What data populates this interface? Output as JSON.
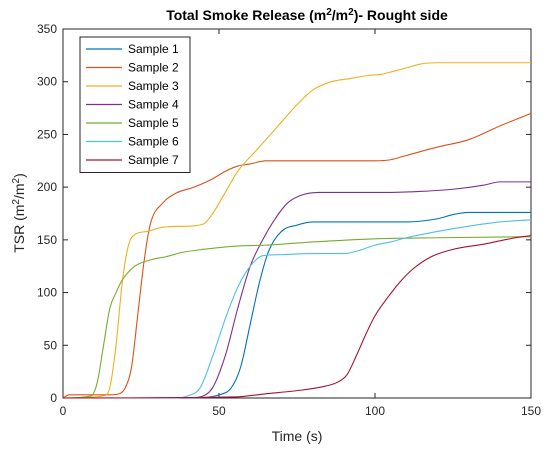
{
  "chart_data": {
    "type": "line",
    "title_prefix": "Total Smoke Release (m",
    "title_sup1": "2",
    "title_mid": "/m",
    "title_sup2": "2",
    "title_suffix": ")- Rought side",
    "xlabel": "Time (s)",
    "ylabel_prefix": "TSR (m",
    "ylabel_sup1": "2",
    "ylabel_mid": "/m",
    "ylabel_sup2": "2",
    "ylabel_suffix": ")",
    "xlim": [
      0,
      150
    ],
    "ylim": [
      0,
      350
    ],
    "xticks": [
      0,
      50,
      100,
      150
    ],
    "yticks": [
      0,
      50,
      100,
      150,
      200,
      250,
      300,
      350
    ],
    "grid": false,
    "legend_position": "top-left",
    "series": [
      {
        "name": "Sample 1",
        "color": "#0072BD",
        "points": [
          [
            0,
            0
          ],
          [
            40,
            0
          ],
          [
            50,
            3
          ],
          [
            54,
            10
          ],
          [
            57,
            30
          ],
          [
            60,
            70
          ],
          [
            63,
            110
          ],
          [
            66,
            140
          ],
          [
            70,
            158
          ],
          [
            75,
            164
          ],
          [
            80,
            167
          ],
          [
            90,
            167
          ],
          [
            110,
            167
          ],
          [
            120,
            170
          ],
          [
            125,
            174
          ],
          [
            130,
            176
          ],
          [
            150,
            176
          ]
        ]
      },
      {
        "name": "Sample 2",
        "color": "#D95319",
        "points": [
          [
            0,
            0
          ],
          [
            2,
            3
          ],
          [
            5,
            3
          ],
          [
            10,
            3
          ],
          [
            15,
            3
          ],
          [
            18,
            4
          ],
          [
            20,
            10
          ],
          [
            22,
            30
          ],
          [
            24,
            80
          ],
          [
            26,
            130
          ],
          [
            28,
            165
          ],
          [
            32,
            185
          ],
          [
            36,
            194
          ],
          [
            42,
            200
          ],
          [
            48,
            208
          ],
          [
            52,
            215
          ],
          [
            56,
            220
          ],
          [
            60,
            222
          ],
          [
            65,
            225
          ],
          [
            80,
            225
          ],
          [
            100,
            225
          ],
          [
            105,
            226
          ],
          [
            110,
            230
          ],
          [
            120,
            238
          ],
          [
            130,
            245
          ],
          [
            140,
            258
          ],
          [
            150,
            270
          ]
        ]
      },
      {
        "name": "Sample 3",
        "color": "#EDB120",
        "points": [
          [
            0,
            0
          ],
          [
            13,
            2
          ],
          [
            15,
            10
          ],
          [
            17,
            50
          ],
          [
            19,
            110
          ],
          [
            21,
            145
          ],
          [
            23,
            155
          ],
          [
            27,
            158
          ],
          [
            32,
            162
          ],
          [
            40,
            163
          ],
          [
            45,
            165
          ],
          [
            48,
            175
          ],
          [
            52,
            195
          ],
          [
            56,
            215
          ],
          [
            62,
            235
          ],
          [
            68,
            255
          ],
          [
            74,
            275
          ],
          [
            80,
            292
          ],
          [
            86,
            300
          ],
          [
            92,
            303
          ],
          [
            98,
            306
          ],
          [
            102,
            307
          ],
          [
            106,
            310
          ],
          [
            110,
            313
          ],
          [
            115,
            317
          ],
          [
            120,
            318
          ],
          [
            150,
            318
          ]
        ]
      },
      {
        "name": "Sample 4",
        "color": "#7E2F8E",
        "points": [
          [
            0,
            0
          ],
          [
            40,
            0
          ],
          [
            45,
            2
          ],
          [
            48,
            10
          ],
          [
            52,
            40
          ],
          [
            56,
            85
          ],
          [
            60,
            125
          ],
          [
            64,
            150
          ],
          [
            68,
            170
          ],
          [
            72,
            185
          ],
          [
            76,
            192
          ],
          [
            82,
            195
          ],
          [
            90,
            195
          ],
          [
            105,
            195
          ],
          [
            115,
            196
          ],
          [
            125,
            198
          ],
          [
            135,
            202
          ],
          [
            140,
            205
          ],
          [
            150,
            205
          ]
        ]
      },
      {
        "name": "Sample 5",
        "color": "#77AC30",
        "points": [
          [
            0,
            0
          ],
          [
            9,
            2
          ],
          [
            11,
            15
          ],
          [
            13,
            50
          ],
          [
            15,
            85
          ],
          [
            17,
            100
          ],
          [
            19,
            112
          ],
          [
            23,
            125
          ],
          [
            28,
            131
          ],
          [
            33,
            134
          ],
          [
            38,
            138
          ],
          [
            45,
            141
          ],
          [
            55,
            144
          ],
          [
            65,
            145
          ],
          [
            80,
            148
          ],
          [
            100,
            151
          ],
          [
            120,
            152
          ],
          [
            150,
            153
          ]
        ]
      },
      {
        "name": "Sample 6",
        "color": "#4DBEEE",
        "points": [
          [
            0,
            0
          ],
          [
            35,
            0
          ],
          [
            40,
            2
          ],
          [
            44,
            10
          ],
          [
            48,
            40
          ],
          [
            52,
            75
          ],
          [
            56,
            105
          ],
          [
            60,
            125
          ],
          [
            64,
            135
          ],
          [
            70,
            136
          ],
          [
            80,
            137
          ],
          [
            90,
            137
          ],
          [
            95,
            140
          ],
          [
            100,
            145
          ],
          [
            105,
            148
          ],
          [
            110,
            152
          ],
          [
            120,
            158
          ],
          [
            130,
            163
          ],
          [
            140,
            167
          ],
          [
            150,
            169
          ]
        ]
      },
      {
        "name": "Sample 7",
        "color": "#A2142F",
        "points": [
          [
            0,
            0
          ],
          [
            55,
            1
          ],
          [
            65,
            4
          ],
          [
            75,
            7
          ],
          [
            82,
            10
          ],
          [
            88,
            15
          ],
          [
            91,
            22
          ],
          [
            94,
            40
          ],
          [
            97,
            60
          ],
          [
            100,
            78
          ],
          [
            104,
            95
          ],
          [
            108,
            110
          ],
          [
            112,
            122
          ],
          [
            118,
            134
          ],
          [
            125,
            141
          ],
          [
            135,
            146
          ],
          [
            145,
            152
          ],
          [
            150,
            154
          ]
        ]
      }
    ]
  }
}
